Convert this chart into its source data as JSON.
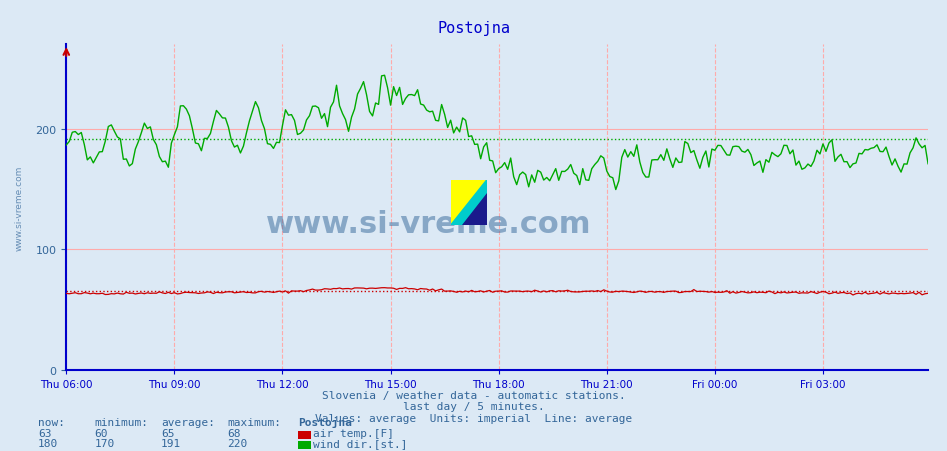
{
  "title": "Postojna",
  "title_color": "#0000cc",
  "bg_color": "#dce9f5",
  "plot_bg_color": "#dce9f5",
  "yticks": [
    0,
    100,
    200
  ],
  "ymax": 270,
  "ymin": 0,
  "x_tick_labels": [
    "Thu 06:00",
    "Thu 09:00",
    "Thu 12:00",
    "Thu 15:00",
    "Thu 18:00",
    "Thu 21:00",
    "Fri 00:00",
    "Fri 03:00"
  ],
  "x_tick_positions": [
    0,
    36,
    72,
    108,
    144,
    180,
    216,
    252
  ],
  "n_points": 288,
  "subtitle1": "Slovenia / weather data - automatic stations.",
  "subtitle2": "last day / 5 minutes.",
  "subtitle3": "Values: average  Units: imperial  Line: average",
  "subtitle_color": "#336699",
  "legend_title": "Postojna",
  "legend_labels": [
    "air temp.[F]",
    "wind dir.[st.]"
  ],
  "legend_colors": [
    "#cc0000",
    "#00aa00"
  ],
  "legend_now": [
    63,
    180
  ],
  "legend_min": [
    60,
    170
  ],
  "legend_avg": [
    65,
    191
  ],
  "legend_max": [
    68,
    220
  ],
  "temp_avg_line": 65,
  "wind_avg_line": 191,
  "temp_color": "#cc0000",
  "wind_color": "#00aa00",
  "grid_vcolor": "#ffaaaa",
  "grid_hcolor": "#ffaaaa",
  "axis_color": "#0000cc",
  "tick_color": "#336699",
  "watermark": "www.si-vreme.com",
  "watermark_color": "#336699"
}
